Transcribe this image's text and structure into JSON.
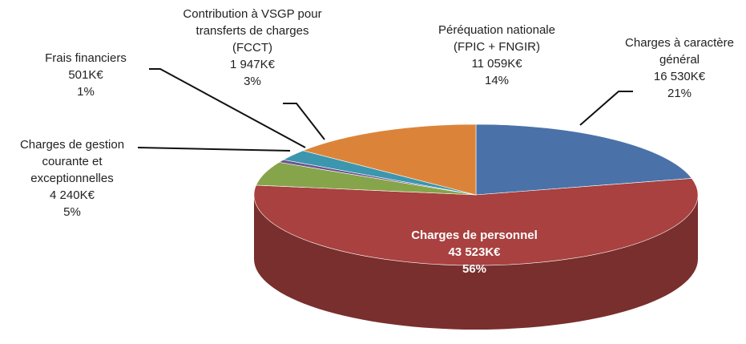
{
  "chart_data": {
    "type": "pie3d",
    "categories": [
      [
        "Charges à caractère",
        "général"
      ],
      [
        "Charges de personnel"
      ],
      [
        "Charges de gestion",
        "courante et",
        "exceptionnelles"
      ],
      [
        "Frais financiers"
      ],
      [
        "Contribution à VSGP pour",
        "transferts de charges",
        "(FCCT)"
      ],
      [
        "Péréquation nationale",
        "(FPIC + FNGIR)"
      ]
    ],
    "values": [
      16530,
      43523,
      4240,
      501,
      1947,
      11059
    ],
    "value_labels": [
      "16 530K€",
      "43 523K€",
      "4 240K€",
      "501K€",
      "1 947K€",
      "11 059K€"
    ],
    "percentages": [
      21,
      56,
      5,
      1,
      3,
      14
    ],
    "percentage_labels": [
      "21%",
      "56%",
      "5%",
      "1%",
      "3%",
      "14%"
    ],
    "colors": [
      "#4a72a8",
      "#a8413f",
      "#86a44a",
      "#6e5591",
      "#3b96ae",
      "#db8439"
    ]
  }
}
